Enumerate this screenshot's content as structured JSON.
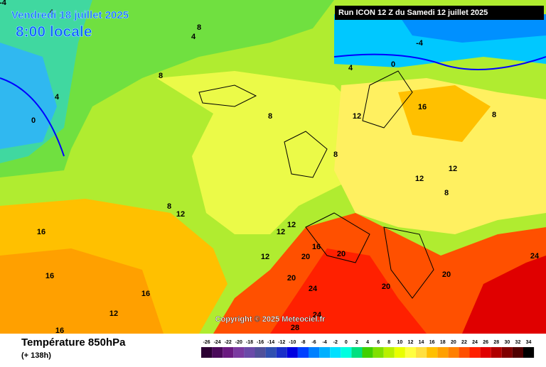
{
  "header": {
    "date": "Vendredi 18 juillet 2025",
    "time": "8:00 locale",
    "run": "Run ICON 12 Z du Samedi 12 juillet 2025"
  },
  "map": {
    "copyright": "Copyright © 2025 Meteociel.fr",
    "contour_labels": [
      4,
      8,
      4,
      8,
      4,
      0,
      -4,
      0,
      4,
      12,
      16,
      8,
      8,
      12,
      8,
      12,
      12,
      16,
      16,
      16,
      20,
      20,
      24,
      20,
      20,
      24,
      24,
      28,
      16,
      12,
      16,
      12,
      8,
      20,
      12,
      -4,
      8,
      12
    ]
  },
  "footer": {
    "title": "Température 850hPa",
    "subtitle": "(+ 138h)",
    "legend": {
      "labels": [
        -26,
        -24,
        -22,
        -20,
        -18,
        -16,
        -14,
        -12,
        -10,
        -8,
        -6,
        -4,
        -2,
        0,
        2,
        4,
        6,
        8,
        10,
        12,
        14,
        16,
        18,
        20,
        22,
        24,
        26,
        28,
        30,
        32,
        34
      ],
      "colors": [
        "#2b0033",
        "#4a0a5a",
        "#6a1a80",
        "#7a3aa0",
        "#6a4aa8",
        "#50509a",
        "#3050b0",
        "#1a30c8",
        "#0000e0",
        "#0040ff",
        "#0080ff",
        "#00b0ff",
        "#00e0ff",
        "#00ffe0",
        "#00e080",
        "#40d000",
        "#80e000",
        "#b8f000",
        "#e8ff00",
        "#ffff40",
        "#ffe040",
        "#ffc000",
        "#ffa000",
        "#ff8000",
        "#ff5000",
        "#ff2000",
        "#e00000",
        "#b00000",
        "#800000",
        "#500000",
        "#000000"
      ]
    }
  }
}
